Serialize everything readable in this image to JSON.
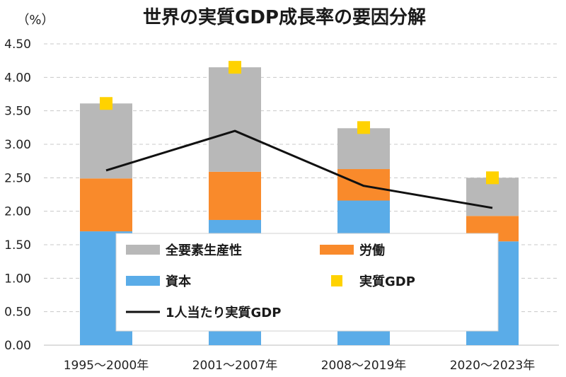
{
  "chart_data": {
    "type": "bar",
    "stacked": true,
    "title": "世界の実質GDP成長率の要因分解",
    "ylabel": "（%）",
    "xlabel": "",
    "ylim": [
      0,
      4.5
    ],
    "yticks": [
      "0.00",
      "0.50",
      "1.00",
      "1.50",
      "2.00",
      "2.50",
      "3.00",
      "3.50",
      "4.00",
      "4.50"
    ],
    "grid": true,
    "categories": [
      "1995～2000年",
      "2001～2007年",
      "2008～2019年",
      "2020～2023年"
    ],
    "series": [
      {
        "name": "資本",
        "kind": "bar",
        "color": "#5aace8",
        "values": [
          1.7,
          1.87,
          2.16,
          1.55
        ]
      },
      {
        "name": "労働",
        "kind": "bar",
        "color": "#f98a2b",
        "values": [
          0.79,
          0.72,
          0.47,
          0.38
        ]
      },
      {
        "name": "全要素生産性",
        "kind": "bar",
        "color": "#b8b8b8",
        "values": [
          1.12,
          1.56,
          0.61,
          0.57
        ]
      },
      {
        "name": "実質GDP",
        "kind": "marker",
        "color": "#ffd200",
        "values": [
          3.61,
          4.15,
          3.25,
          2.5
        ]
      },
      {
        "name": "1人当たり実質GDP",
        "kind": "line",
        "color": "#111111",
        "values": [
          2.61,
          3.2,
          2.38,
          2.05
        ]
      }
    ],
    "legend": {
      "placement": "inside-bottom-center",
      "order": [
        "全要素生産性",
        "労働",
        "資本",
        "実質GDP",
        "1人当たり実質GDP"
      ]
    }
  }
}
